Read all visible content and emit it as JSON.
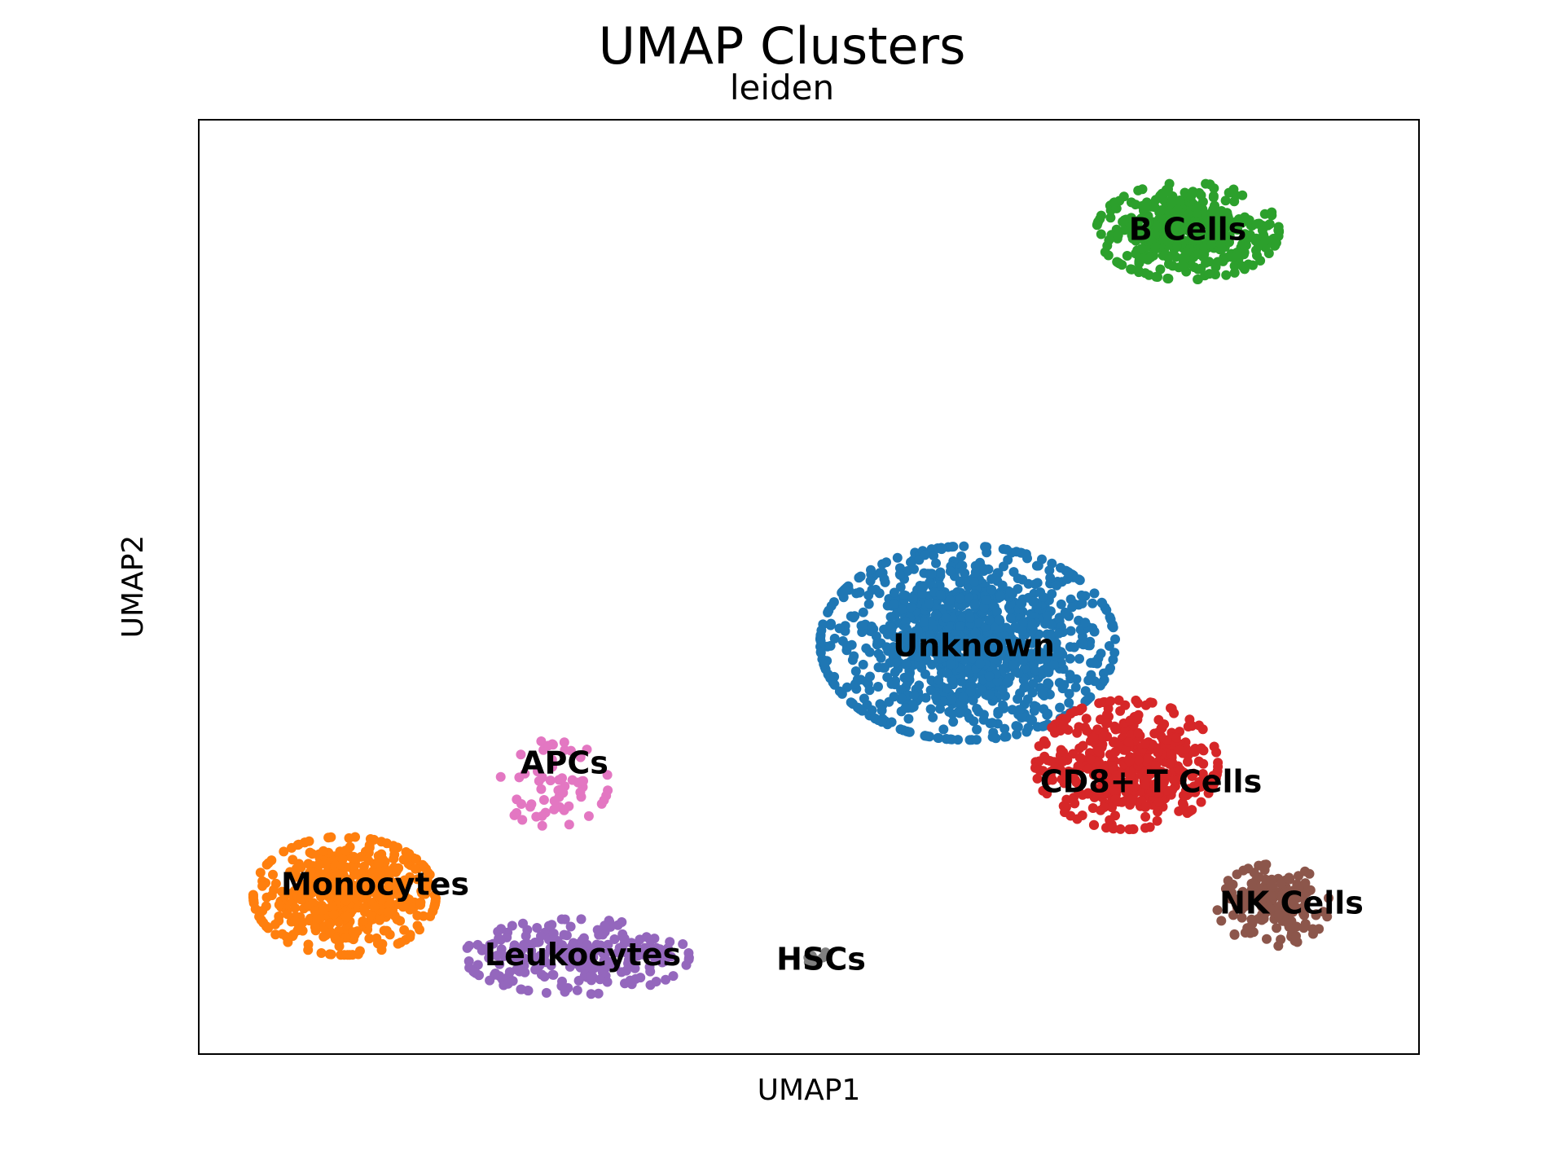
{
  "figure": {
    "title": "UMAP Clusters",
    "subtitle": "leiden",
    "xlabel": "UMAP1",
    "ylabel": "UMAP2"
  },
  "chart_data": {
    "type": "scatter",
    "title": "UMAP Clusters",
    "subtitle": "leiden",
    "xlabel": "UMAP1",
    "ylabel": "UMAP2",
    "xlim": [
      0,
      100
    ],
    "ylim": [
      0,
      100
    ],
    "ticks_visible": false,
    "grid": false,
    "legend": "on data",
    "clusters": [
      {
        "name": "Unknown",
        "color": "#1f77b4",
        "center": [
          63,
          44
        ],
        "spread": [
          10.5,
          9.0
        ],
        "count": 1150,
        "label_pos": [
          63.5,
          43.5
        ]
      },
      {
        "name": "Monocytes",
        "color": "#ff7f0e",
        "center": [
          12,
          17
        ],
        "spread": [
          6.5,
          5.5
        ],
        "count": 520,
        "label_pos": [
          14.5,
          18
        ]
      },
      {
        "name": "B Cells",
        "color": "#2ca02c",
        "center": [
          81,
          88
        ],
        "spread": [
          6.5,
          4.5
        ],
        "count": 430,
        "label_pos": [
          81,
          88
        ]
      },
      {
        "name": "CD8+ T Cells",
        "color": "#d62728",
        "center": [
          76,
          31
        ],
        "spread": [
          6.5,
          6.0
        ],
        "count": 470,
        "label_pos": [
          78,
          29
        ]
      },
      {
        "name": "Leukocytes",
        "color": "#9467bd",
        "center": [
          31,
          10.5
        ],
        "spread": [
          8.0,
          3.5
        ],
        "count": 260,
        "label_pos": [
          31.5,
          10.5
        ]
      },
      {
        "name": "NK Cells",
        "color": "#8c564b",
        "center": [
          88,
          16
        ],
        "spread": [
          4.0,
          3.8
        ],
        "count": 170,
        "label_pos": [
          89.5,
          16
        ]
      },
      {
        "name": "APCs",
        "color": "#e377c2",
        "center": [
          29,
          29
        ],
        "spread": [
          4.0,
          4.0
        ],
        "count": 60,
        "label_pos": [
          30,
          31
        ]
      },
      {
        "name": "HSCs",
        "color": "#7f7f7f",
        "center": [
          50.5,
          10.5
        ],
        "spread": [
          1.0,
          0.6
        ],
        "count": 9,
        "label_pos": [
          51,
          10
        ]
      }
    ]
  }
}
